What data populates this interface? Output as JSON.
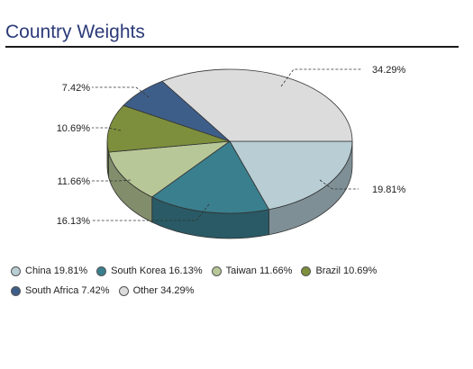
{
  "chart_data": {
    "type": "pie",
    "title": "Country Weights",
    "slices": [
      {
        "label": "China",
        "value": 19.81,
        "color": "#b8cdd4",
        "side": "#7e9096"
      },
      {
        "label": "South Korea",
        "value": 16.13,
        "color": "#3a7f8e",
        "side": "#295a65"
      },
      {
        "label": "Taiwan",
        "value": 11.66,
        "color": "#b8c797",
        "side": "#828e6b"
      },
      {
        "label": "Brazil",
        "value": 10.69,
        "color": "#7d8f3c",
        "side": "#58652a"
      },
      {
        "label": "South Africa",
        "value": 7.42,
        "color": "#3e5e8a",
        "side": "#2b4262"
      },
      {
        "label": "Other",
        "value": 34.29,
        "color": "#dcdcdc",
        "side": "#9c9c9c"
      }
    ],
    "data_labels": [
      "19.81%",
      "16.13%",
      "11.66%",
      "10.69%",
      "7.42%",
      "34.29%"
    ],
    "legend": {
      "position": "bottom",
      "rows": [
        [
          "China 19.81%",
          "South Korea 16.13%",
          "Taiwan 11.66%",
          "Brazil 10.69%"
        ],
        [
          "South Africa 7.42%",
          "Other 34.29%"
        ]
      ]
    }
  }
}
